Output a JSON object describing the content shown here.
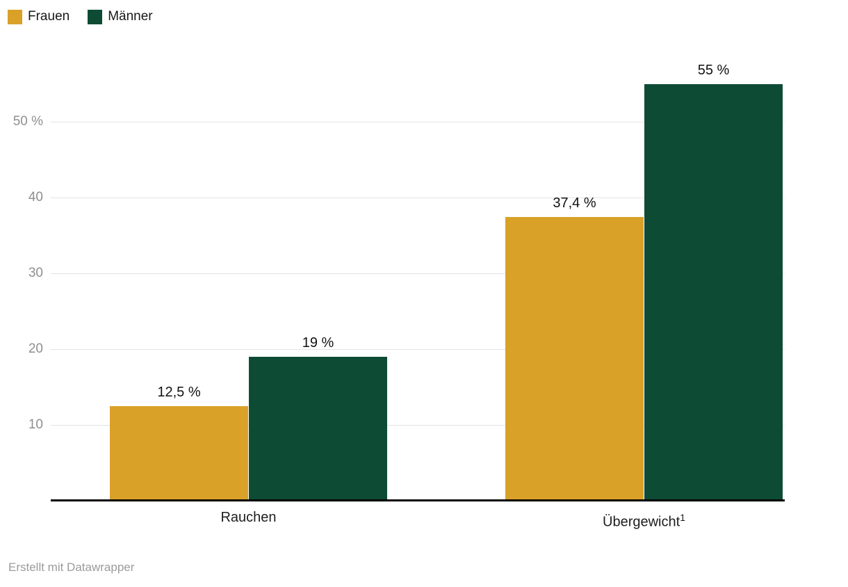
{
  "legend": {
    "items": [
      {
        "id": "frauen",
        "label": "Frauen",
        "color": "#D9A128"
      },
      {
        "id": "maenner",
        "label": "Männer",
        "color": "#0E4B35"
      }
    ]
  },
  "chart_data": {
    "type": "bar",
    "categories": [
      {
        "id": "rauchen",
        "label": "Rauchen",
        "superscript": ""
      },
      {
        "id": "uebergewicht",
        "label": "Übergewicht",
        "superscript": "1"
      }
    ],
    "series": [
      {
        "id": "frauen",
        "name": "Frauen",
        "color": "#D9A128",
        "values": [
          12.5,
          37.4
        ],
        "value_labels": [
          "12,5 %",
          "37,4 %"
        ]
      },
      {
        "id": "maenner",
        "name": "Männer",
        "color": "#0E4B35",
        "values": [
          19,
          55
        ],
        "value_labels": [
          "19 %",
          "55 %"
        ]
      }
    ],
    "y_axis": {
      "ticks": [
        10,
        20,
        30,
        40,
        50
      ],
      "tick_labels": [
        "10",
        "20",
        "30",
        "40",
        "50 %"
      ],
      "ylim": [
        0,
        60
      ],
      "grid": true
    },
    "legend_position": "top-left"
  },
  "footer": {
    "attribution": "Erstellt mit Datawrapper"
  }
}
